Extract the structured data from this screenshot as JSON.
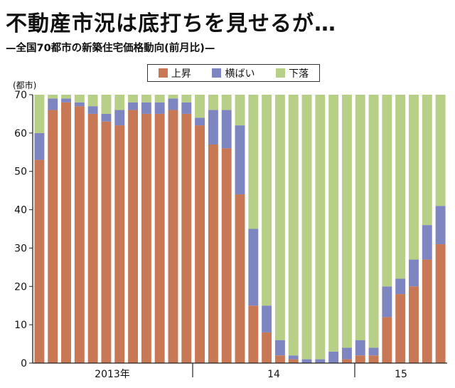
{
  "headline": "不動産市況は底打ちを見せるが…",
  "subtitle": "—全国70都市の新築住宅価格動向(前月比)—",
  "colors": {
    "rise": "#c87854",
    "flat": "#7d86c1",
    "fall": "#b7cf86",
    "axis": "#222222"
  },
  "chart_data": {
    "type": "bar",
    "stacked": true,
    "unit_label": "(都市)",
    "yticks": [
      "0",
      "10",
      "20",
      "30",
      "40",
      "50",
      "60",
      "70"
    ],
    "ylim": [
      0,
      70
    ],
    "legend_placement": "top-center",
    "year_labels": [
      "2013年",
      "14",
      "15"
    ],
    "series": [
      {
        "name": "上昇",
        "color_key": "rise",
        "values": [
          53,
          66,
          68,
          67,
          65,
          63,
          62,
          66,
          65,
          65,
          66,
          65,
          62,
          57,
          56,
          44,
          15,
          8,
          2,
          1,
          0,
          0,
          0,
          1,
          2,
          2,
          12,
          18,
          20,
          27,
          31
        ]
      },
      {
        "name": "横ばい",
        "color_key": "flat",
        "values": [
          7,
          3,
          1,
          1,
          2,
          2,
          4,
          2,
          3,
          3,
          3,
          3,
          2,
          9,
          10,
          18,
          20,
          7,
          4,
          1,
          1,
          1,
          3,
          3,
          4,
          2,
          8,
          4,
          7,
          9,
          10
        ]
      },
      {
        "name": "下落",
        "color_key": "fall",
        "values": [
          10,
          1,
          1,
          2,
          3,
          5,
          4,
          2,
          2,
          2,
          1,
          2,
          6,
          4,
          4,
          8,
          35,
          55,
          64,
          68,
          69,
          69,
          67,
          66,
          64,
          66,
          50,
          48,
          43,
          34,
          29
        ]
      }
    ]
  }
}
